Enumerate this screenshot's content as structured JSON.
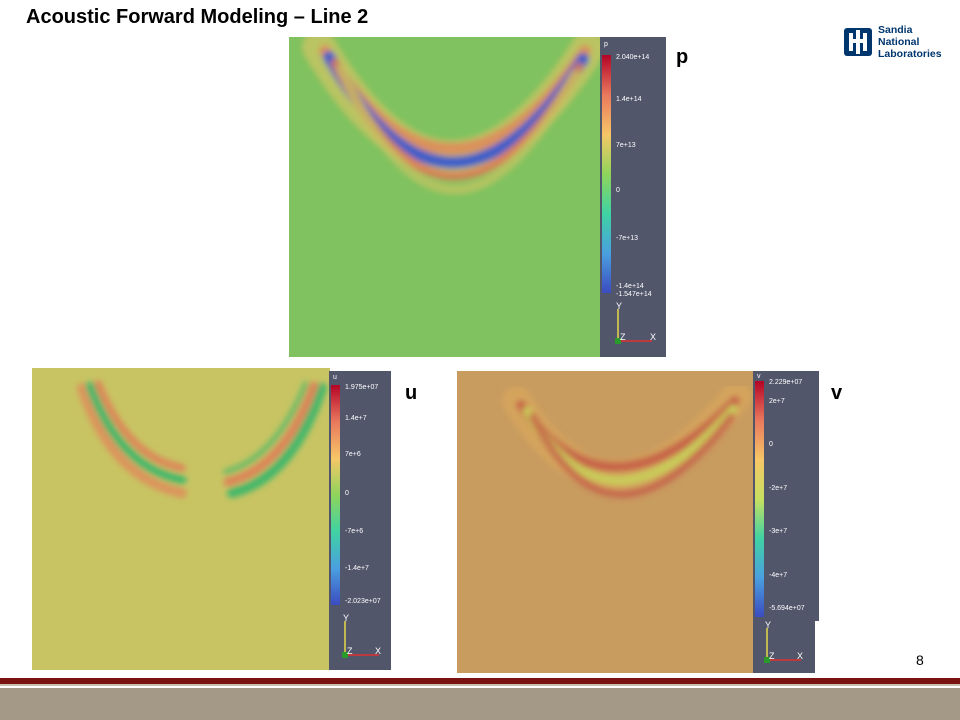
{
  "slide": {
    "title": "Acoustic Forward Modeling – Line 2",
    "page_number": "8"
  },
  "logo": {
    "icon": "sandia-thunderbird-icon",
    "lines": [
      "Sandia",
      "National",
      "Laboratories"
    ],
    "color": "#00366e"
  },
  "plots": {
    "p": {
      "label": "p",
      "colorbar_title": "p",
      "ticks": [
        "2.040e+14",
        "1.4e+14",
        "7e+13",
        "0",
        "-7e+13",
        "-1.4e+14",
        "-1.547e+14"
      ],
      "background": "#7fc25f"
    },
    "u": {
      "label": "u",
      "colorbar_title": "u",
      "ticks": [
        "1.975e+07",
        "1.4e+7",
        "7e+6",
        "0",
        "-7e+6",
        "-1.4e+7",
        "-2.023e+07"
      ],
      "background": "#c8c463"
    },
    "v": {
      "label": "v",
      "colorbar_title": "v",
      "ticks": [
        "2.229e+07",
        "2e+7",
        "0",
        "-2e+7",
        "-3e+7",
        "-4e+7",
        "-5.694e+07"
      ],
      "background": "#c89b5f"
    }
  },
  "axes_triad": {
    "y": "Y",
    "z": "Z",
    "x": "X"
  }
}
